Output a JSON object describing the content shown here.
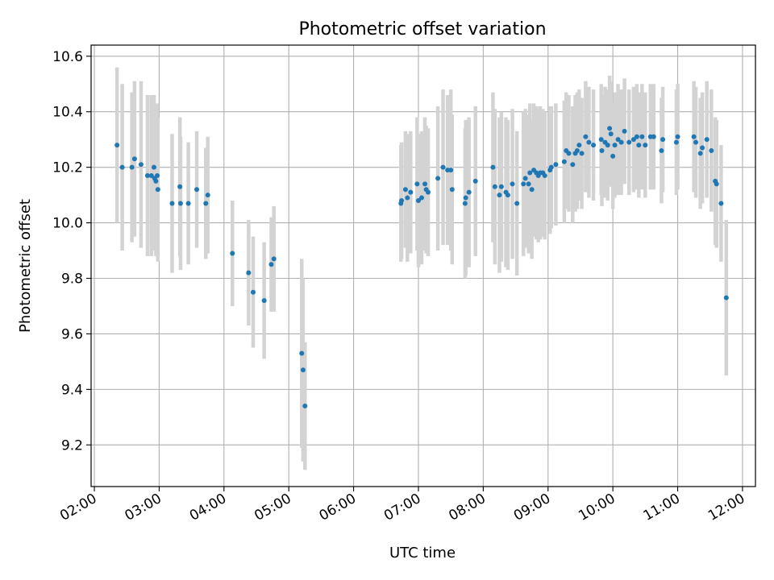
{
  "chart_data": {
    "type": "scatter",
    "title": "Photometric offset variation",
    "xlabel": "UTC time",
    "ylabel": "Photometric offset",
    "xlim": [
      1.95,
      12.2
    ],
    "ylim": [
      9.05,
      10.64
    ],
    "grid": true,
    "marker_color": "#1f77b4",
    "errorbar_color": "#d3d3d3",
    "x_ticks": [
      {
        "v": 2,
        "label": "02:00"
      },
      {
        "v": 3,
        "label": "03:00"
      },
      {
        "v": 4,
        "label": "04:00"
      },
      {
        "v": 5,
        "label": "05:00"
      },
      {
        "v": 6,
        "label": "06:00"
      },
      {
        "v": 7,
        "label": "07:00"
      },
      {
        "v": 8,
        "label": "08:00"
      },
      {
        "v": 9,
        "label": "09:00"
      },
      {
        "v": 10,
        "label": "10:00"
      },
      {
        "v": 11,
        "label": "11:00"
      },
      {
        "v": 12,
        "label": "12:00"
      }
    ],
    "y_ticks": [
      {
        "v": 9.2,
        "label": "9.2"
      },
      {
        "v": 9.4,
        "label": "9.4"
      },
      {
        "v": 9.6,
        "label": "9.6"
      },
      {
        "v": 9.8,
        "label": "9.8"
      },
      {
        "v": 10.0,
        "label": "10.0"
      },
      {
        "v": 10.2,
        "label": "10.2"
      },
      {
        "v": 10.4,
        "label": "10.4"
      },
      {
        "v": 10.6,
        "label": "10.6"
      }
    ],
    "x_unit": "hours UTC",
    "series": [
      {
        "points": [
          {
            "x": 2.35,
            "y": 10.28,
            "err": 0.28
          },
          {
            "x": 2.43,
            "y": 10.2,
            "err": 0.3
          },
          {
            "x": 2.58,
            "y": 10.2,
            "err": 0.27
          },
          {
            "x": 2.62,
            "y": 10.23,
            "err": 0.28
          },
          {
            "x": 2.72,
            "y": 10.21,
            "err": 0.3
          },
          {
            "x": 2.82,
            "y": 10.17,
            "err": 0.29
          },
          {
            "x": 2.88,
            "y": 10.17,
            "err": 0.29
          },
          {
            "x": 2.92,
            "y": 10.2,
            "err": 0.26
          },
          {
            "x": 2.93,
            "y": 10.16,
            "err": 0.26
          },
          {
            "x": 2.95,
            "y": 10.15,
            "err": 0.27
          },
          {
            "x": 2.97,
            "y": 10.17,
            "err": 0.26
          },
          {
            "x": 2.98,
            "y": 10.12,
            "err": 0.26
          },
          {
            "x": 3.2,
            "y": 10.07,
            "err": 0.25
          },
          {
            "x": 3.32,
            "y": 10.13,
            "err": 0.25
          },
          {
            "x": 3.33,
            "y": 10.07,
            "err": 0.24
          },
          {
            "x": 3.45,
            "y": 10.07,
            "err": 0.22
          },
          {
            "x": 3.58,
            "y": 10.12,
            "err": 0.21
          },
          {
            "x": 3.72,
            "y": 10.07,
            "err": 0.2
          },
          {
            "x": 3.75,
            "y": 10.1,
            "err": 0.21
          },
          {
            "x": 4.13,
            "y": 9.89,
            "err": 0.19
          },
          {
            "x": 4.38,
            "y": 9.82,
            "err": 0.19
          },
          {
            "x": 4.45,
            "y": 9.75,
            "err": 0.2
          },
          {
            "x": 4.62,
            "y": 9.72,
            "err": 0.21
          },
          {
            "x": 4.73,
            "y": 9.85,
            "err": 0.17
          },
          {
            "x": 4.77,
            "y": 9.87,
            "err": 0.19
          },
          {
            "x": 5.2,
            "y": 9.53,
            "err": 0.34
          },
          {
            "x": 5.22,
            "y": 9.47,
            "err": 0.33
          },
          {
            "x": 5.25,
            "y": 9.34,
            "err": 0.23
          },
          {
            "x": 6.73,
            "y": 10.07,
            "err": 0.21
          },
          {
            "x": 6.74,
            "y": 10.08,
            "err": 0.21
          },
          {
            "x": 6.8,
            "y": 10.12,
            "err": 0.21
          },
          {
            "x": 6.83,
            "y": 10.09,
            "err": 0.23
          },
          {
            "x": 6.88,
            "y": 10.11,
            "err": 0.22
          },
          {
            "x": 6.98,
            "y": 10.14,
            "err": 0.24
          },
          {
            "x": 7.0,
            "y": 10.08,
            "err": 0.24
          },
          {
            "x": 7.05,
            "y": 10.09,
            "err": 0.24
          },
          {
            "x": 7.1,
            "y": 10.14,
            "err": 0.24
          },
          {
            "x": 7.12,
            "y": 10.12,
            "err": 0.23
          },
          {
            "x": 7.15,
            "y": 10.11,
            "err": 0.23
          },
          {
            "x": 7.3,
            "y": 10.16,
            "err": 0.26
          },
          {
            "x": 7.38,
            "y": 10.2,
            "err": 0.28
          },
          {
            "x": 7.45,
            "y": 10.19,
            "err": 0.27
          },
          {
            "x": 7.5,
            "y": 10.19,
            "err": 0.29
          },
          {
            "x": 7.52,
            "y": 10.12,
            "err": 0.27
          },
          {
            "x": 7.72,
            "y": 10.07,
            "err": 0.27
          },
          {
            "x": 7.73,
            "y": 10.09,
            "err": 0.28
          },
          {
            "x": 7.78,
            "y": 10.11,
            "err": 0.27
          },
          {
            "x": 7.88,
            "y": 10.15,
            "err": 0.27
          },
          {
            "x": 8.15,
            "y": 10.2,
            "err": 0.27
          },
          {
            "x": 8.18,
            "y": 10.13,
            "err": 0.28
          },
          {
            "x": 8.25,
            "y": 10.1,
            "err": 0.28
          },
          {
            "x": 8.28,
            "y": 10.13,
            "err": 0.27
          },
          {
            "x": 8.35,
            "y": 10.11,
            "err": 0.27
          },
          {
            "x": 8.38,
            "y": 10.1,
            "err": 0.27
          },
          {
            "x": 8.45,
            "y": 10.14,
            "err": 0.27
          },
          {
            "x": 8.52,
            "y": 10.07,
            "err": 0.26
          },
          {
            "x": 8.62,
            "y": 10.14,
            "err": 0.26
          },
          {
            "x": 8.65,
            "y": 10.16,
            "err": 0.25
          },
          {
            "x": 8.7,
            "y": 10.14,
            "err": 0.25
          },
          {
            "x": 8.72,
            "y": 10.18,
            "err": 0.25
          },
          {
            "x": 8.75,
            "y": 10.12,
            "err": 0.25
          },
          {
            "x": 8.78,
            "y": 10.19,
            "err": 0.24
          },
          {
            "x": 8.82,
            "y": 10.18,
            "err": 0.24
          },
          {
            "x": 8.85,
            "y": 10.17,
            "err": 0.24
          },
          {
            "x": 8.88,
            "y": 10.18,
            "err": 0.24
          },
          {
            "x": 8.92,
            "y": 10.18,
            "err": 0.23
          },
          {
            "x": 8.95,
            "y": 10.17,
            "err": 0.23
          },
          {
            "x": 9.03,
            "y": 10.19,
            "err": 0.23
          },
          {
            "x": 9.05,
            "y": 10.2,
            "err": 0.22
          },
          {
            "x": 9.12,
            "y": 10.21,
            "err": 0.22
          },
          {
            "x": 9.25,
            "y": 10.22,
            "err": 0.22
          },
          {
            "x": 9.28,
            "y": 10.26,
            "err": 0.21
          },
          {
            "x": 9.32,
            "y": 10.25,
            "err": 0.21
          },
          {
            "x": 9.38,
            "y": 10.21,
            "err": 0.21
          },
          {
            "x": 9.42,
            "y": 10.25,
            "err": 0.21
          },
          {
            "x": 9.45,
            "y": 10.26,
            "err": 0.21
          },
          {
            "x": 9.48,
            "y": 10.28,
            "err": 0.2
          },
          {
            "x": 9.52,
            "y": 10.25,
            "err": 0.2
          },
          {
            "x": 9.58,
            "y": 10.31,
            "err": 0.2
          },
          {
            "x": 9.63,
            "y": 10.29,
            "err": 0.2
          },
          {
            "x": 9.7,
            "y": 10.28,
            "err": 0.2
          },
          {
            "x": 9.82,
            "y": 10.3,
            "err": 0.2
          },
          {
            "x": 9.83,
            "y": 10.26,
            "err": 0.2
          },
          {
            "x": 9.88,
            "y": 10.29,
            "err": 0.2
          },
          {
            "x": 9.92,
            "y": 10.28,
            "err": 0.2
          },
          {
            "x": 9.95,
            "y": 10.34,
            "err": 0.19
          },
          {
            "x": 9.97,
            "y": 10.32,
            "err": 0.19
          },
          {
            "x": 10.0,
            "y": 10.24,
            "err": 0.19
          },
          {
            "x": 10.03,
            "y": 10.28,
            "err": 0.19
          },
          {
            "x": 10.08,
            "y": 10.3,
            "err": 0.2
          },
          {
            "x": 10.13,
            "y": 10.29,
            "err": 0.19
          },
          {
            "x": 10.18,
            "y": 10.33,
            "err": 0.19
          },
          {
            "x": 10.25,
            "y": 10.29,
            "err": 0.19
          },
          {
            "x": 10.32,
            "y": 10.3,
            "err": 0.19
          },
          {
            "x": 10.37,
            "y": 10.31,
            "err": 0.19
          },
          {
            "x": 10.4,
            "y": 10.28,
            "err": 0.19
          },
          {
            "x": 10.45,
            "y": 10.31,
            "err": 0.19
          },
          {
            "x": 10.5,
            "y": 10.28,
            "err": 0.19
          },
          {
            "x": 10.58,
            "y": 10.31,
            "err": 0.19
          },
          {
            "x": 10.63,
            "y": 10.31,
            "err": 0.19
          },
          {
            "x": 10.75,
            "y": 10.26,
            "err": 0.19
          },
          {
            "x": 10.77,
            "y": 10.3,
            "err": 0.19
          },
          {
            "x": 10.98,
            "y": 10.29,
            "err": 0.19
          },
          {
            "x": 11.0,
            "y": 10.31,
            "err": 0.19
          },
          {
            "x": 11.25,
            "y": 10.31,
            "err": 0.2
          },
          {
            "x": 11.28,
            "y": 10.29,
            "err": 0.2
          },
          {
            "x": 11.35,
            "y": 10.25,
            "err": 0.2
          },
          {
            "x": 11.38,
            "y": 10.27,
            "err": 0.2
          },
          {
            "x": 11.45,
            "y": 10.3,
            "err": 0.21
          },
          {
            "x": 11.52,
            "y": 10.26,
            "err": 0.22
          },
          {
            "x": 11.58,
            "y": 10.15,
            "err": 0.23
          },
          {
            "x": 11.6,
            "y": 10.14,
            "err": 0.23
          },
          {
            "x": 11.67,
            "y": 10.07,
            "err": 0.21
          },
          {
            "x": 11.75,
            "y": 9.73,
            "err": 0.28
          }
        ]
      }
    ]
  }
}
